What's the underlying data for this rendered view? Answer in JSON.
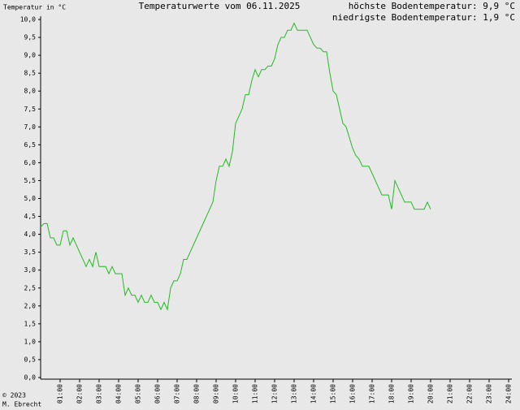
{
  "chart_data": {
    "type": "line",
    "title": "Temperaturwerte vom 06.11.2025",
    "y_label": "Temperatur in °C",
    "annotations": [
      "höchste Bodentemperatur: 9,9 °C",
      "niedrigste Bodentemperatur: 1,9 °C",
      "© 2023",
      "M. Ebrecht"
    ],
    "x": [
      0,
      10,
      20,
      30,
      40,
      50,
      60,
      70,
      80,
      90,
      100,
      110,
      120,
      130,
      140,
      150,
      160,
      170,
      180,
      190,
      200,
      210,
      220,
      230,
      240,
      250,
      260,
      270,
      280,
      290,
      300,
      310,
      320,
      330,
      340,
      350,
      360,
      370,
      380,
      390,
      400,
      410,
      420,
      430,
      440,
      450,
      460,
      470,
      480,
      490,
      500,
      510,
      520,
      530,
      540,
      550,
      560,
      570,
      580,
      590,
      600,
      610,
      620,
      630,
      640,
      650,
      660,
      670,
      680,
      690,
      700,
      710,
      720,
      730,
      740,
      750,
      760,
      770,
      780,
      790,
      800,
      810,
      820,
      830,
      840,
      850,
      860,
      870,
      880,
      890,
      900,
      910,
      920,
      930,
      940,
      950,
      960,
      970,
      980,
      990,
      1000,
      1010,
      1020,
      1030,
      1040,
      1050,
      1060,
      1070,
      1080,
      1090,
      1100,
      1110,
      1120,
      1130,
      1140,
      1150,
      1160,
      1170,
      1180,
      1190,
      1200
    ],
    "series": [
      {
        "name": "Temperatur",
        "color": "#22bb22",
        "values": [
          4.2,
          4.3,
          4.3,
          3.9,
          3.9,
          3.7,
          3.7,
          4.1,
          4.1,
          3.7,
          3.9,
          3.7,
          3.5,
          3.3,
          3.1,
          3.3,
          3.1,
          3.5,
          3.1,
          3.1,
          3.1,
          2.9,
          3.1,
          2.9,
          2.9,
          2.9,
          2.3,
          2.5,
          2.3,
          2.3,
          2.1,
          2.3,
          2.1,
          2.1,
          2.3,
          2.1,
          2.1,
          1.9,
          2.1,
          1.9,
          2.5,
          2.7,
          2.7,
          2.9,
          3.3,
          3.3,
          3.5,
          3.7,
          3.9,
          4.1,
          4.3,
          4.5,
          4.7,
          4.9,
          5.5,
          5.9,
          5.9,
          6.1,
          5.9,
          6.3,
          7.1,
          7.3,
          7.5,
          7.9,
          7.9,
          8.3,
          8.6,
          8.4,
          8.6,
          8.6,
          8.7,
          8.7,
          8.9,
          9.3,
          9.5,
          9.5,
          9.7,
          9.7,
          9.9,
          9.7,
          9.7,
          9.7,
          9.7,
          9.5,
          9.3,
          9.2,
          9.2,
          9.1,
          9.1,
          8.5,
          8.0,
          7.9,
          7.5,
          7.1,
          7.0,
          6.7,
          6.4,
          6.2,
          6.1,
          5.9,
          5.9,
          5.9,
          5.7,
          5.5,
          5.3,
          5.1,
          5.1,
          5.1,
          4.7,
          5.5,
          5.3,
          5.1,
          4.9,
          4.9,
          4.9,
          4.7,
          4.7,
          4.7,
          4.7,
          4.9,
          4.7
        ]
      }
    ],
    "xlim": [
      0,
      1440
    ],
    "xticks": [
      {
        "value": 60,
        "label": "01:00"
      },
      {
        "value": 120,
        "label": "02:00"
      },
      {
        "value": 180,
        "label": "03:00"
      },
      {
        "value": 240,
        "label": "04:00"
      },
      {
        "value": 300,
        "label": "05:00"
      },
      {
        "value": 360,
        "label": "06:00"
      },
      {
        "value": 420,
        "label": "07:00"
      },
      {
        "value": 480,
        "label": "08:00"
      },
      {
        "value": 540,
        "label": "09:00"
      },
      {
        "value": 600,
        "label": "10:00"
      },
      {
        "value": 660,
        "label": "11:00"
      },
      {
        "value": 720,
        "label": "12:00"
      },
      {
        "value": 780,
        "label": "13:00"
      },
      {
        "value": 840,
        "label": "14:00"
      },
      {
        "value": 900,
        "label": "15:00"
      },
      {
        "value": 960,
        "label": "16:00"
      },
      {
        "value": 1020,
        "label": "17:00"
      },
      {
        "value": 1080,
        "label": "18:00"
      },
      {
        "value": 1140,
        "label": "19:00"
      },
      {
        "value": 1200,
        "label": "20:00"
      },
      {
        "value": 1260,
        "label": "21:00"
      },
      {
        "value": 1320,
        "label": "22:00"
      },
      {
        "value": 1380,
        "label": "23:00"
      },
      {
        "value": 1440,
        "label": "24:00"
      }
    ],
    "ylim": [
      0,
      10
    ],
    "yticks": [
      {
        "value": 0,
        "label": "0,0"
      },
      {
        "value": 0.5,
        "label": "0,5"
      },
      {
        "value": 1,
        "label": "1,0"
      },
      {
        "value": 1.5,
        "label": "1,5"
      },
      {
        "value": 2,
        "label": "2,0"
      },
      {
        "value": 2.5,
        "label": "2,5"
      },
      {
        "value": 3,
        "label": "3,0"
      },
      {
        "value": 3.5,
        "label": "3,5"
      },
      {
        "value": 4,
        "label": "4,0"
      },
      {
        "value": 4.5,
        "label": "4,5"
      },
      {
        "value": 5,
        "label": "5,0"
      },
      {
        "value": 5.5,
        "label": "5,5"
      },
      {
        "value": 6,
        "label": "6,0"
      },
      {
        "value": 6.5,
        "label": "6,5"
      },
      {
        "value": 7,
        "label": "7,0"
      },
      {
        "value": 7.5,
        "label": "7,5"
      },
      {
        "value": 8,
        "label": "8,0"
      },
      {
        "value": 8.5,
        "label": "8,5"
      },
      {
        "value": 9,
        "label": "9,0"
      },
      {
        "value": 9.5,
        "label": "9,5"
      },
      {
        "value": 10,
        "label": "10,0"
      }
    ],
    "grid": false
  }
}
